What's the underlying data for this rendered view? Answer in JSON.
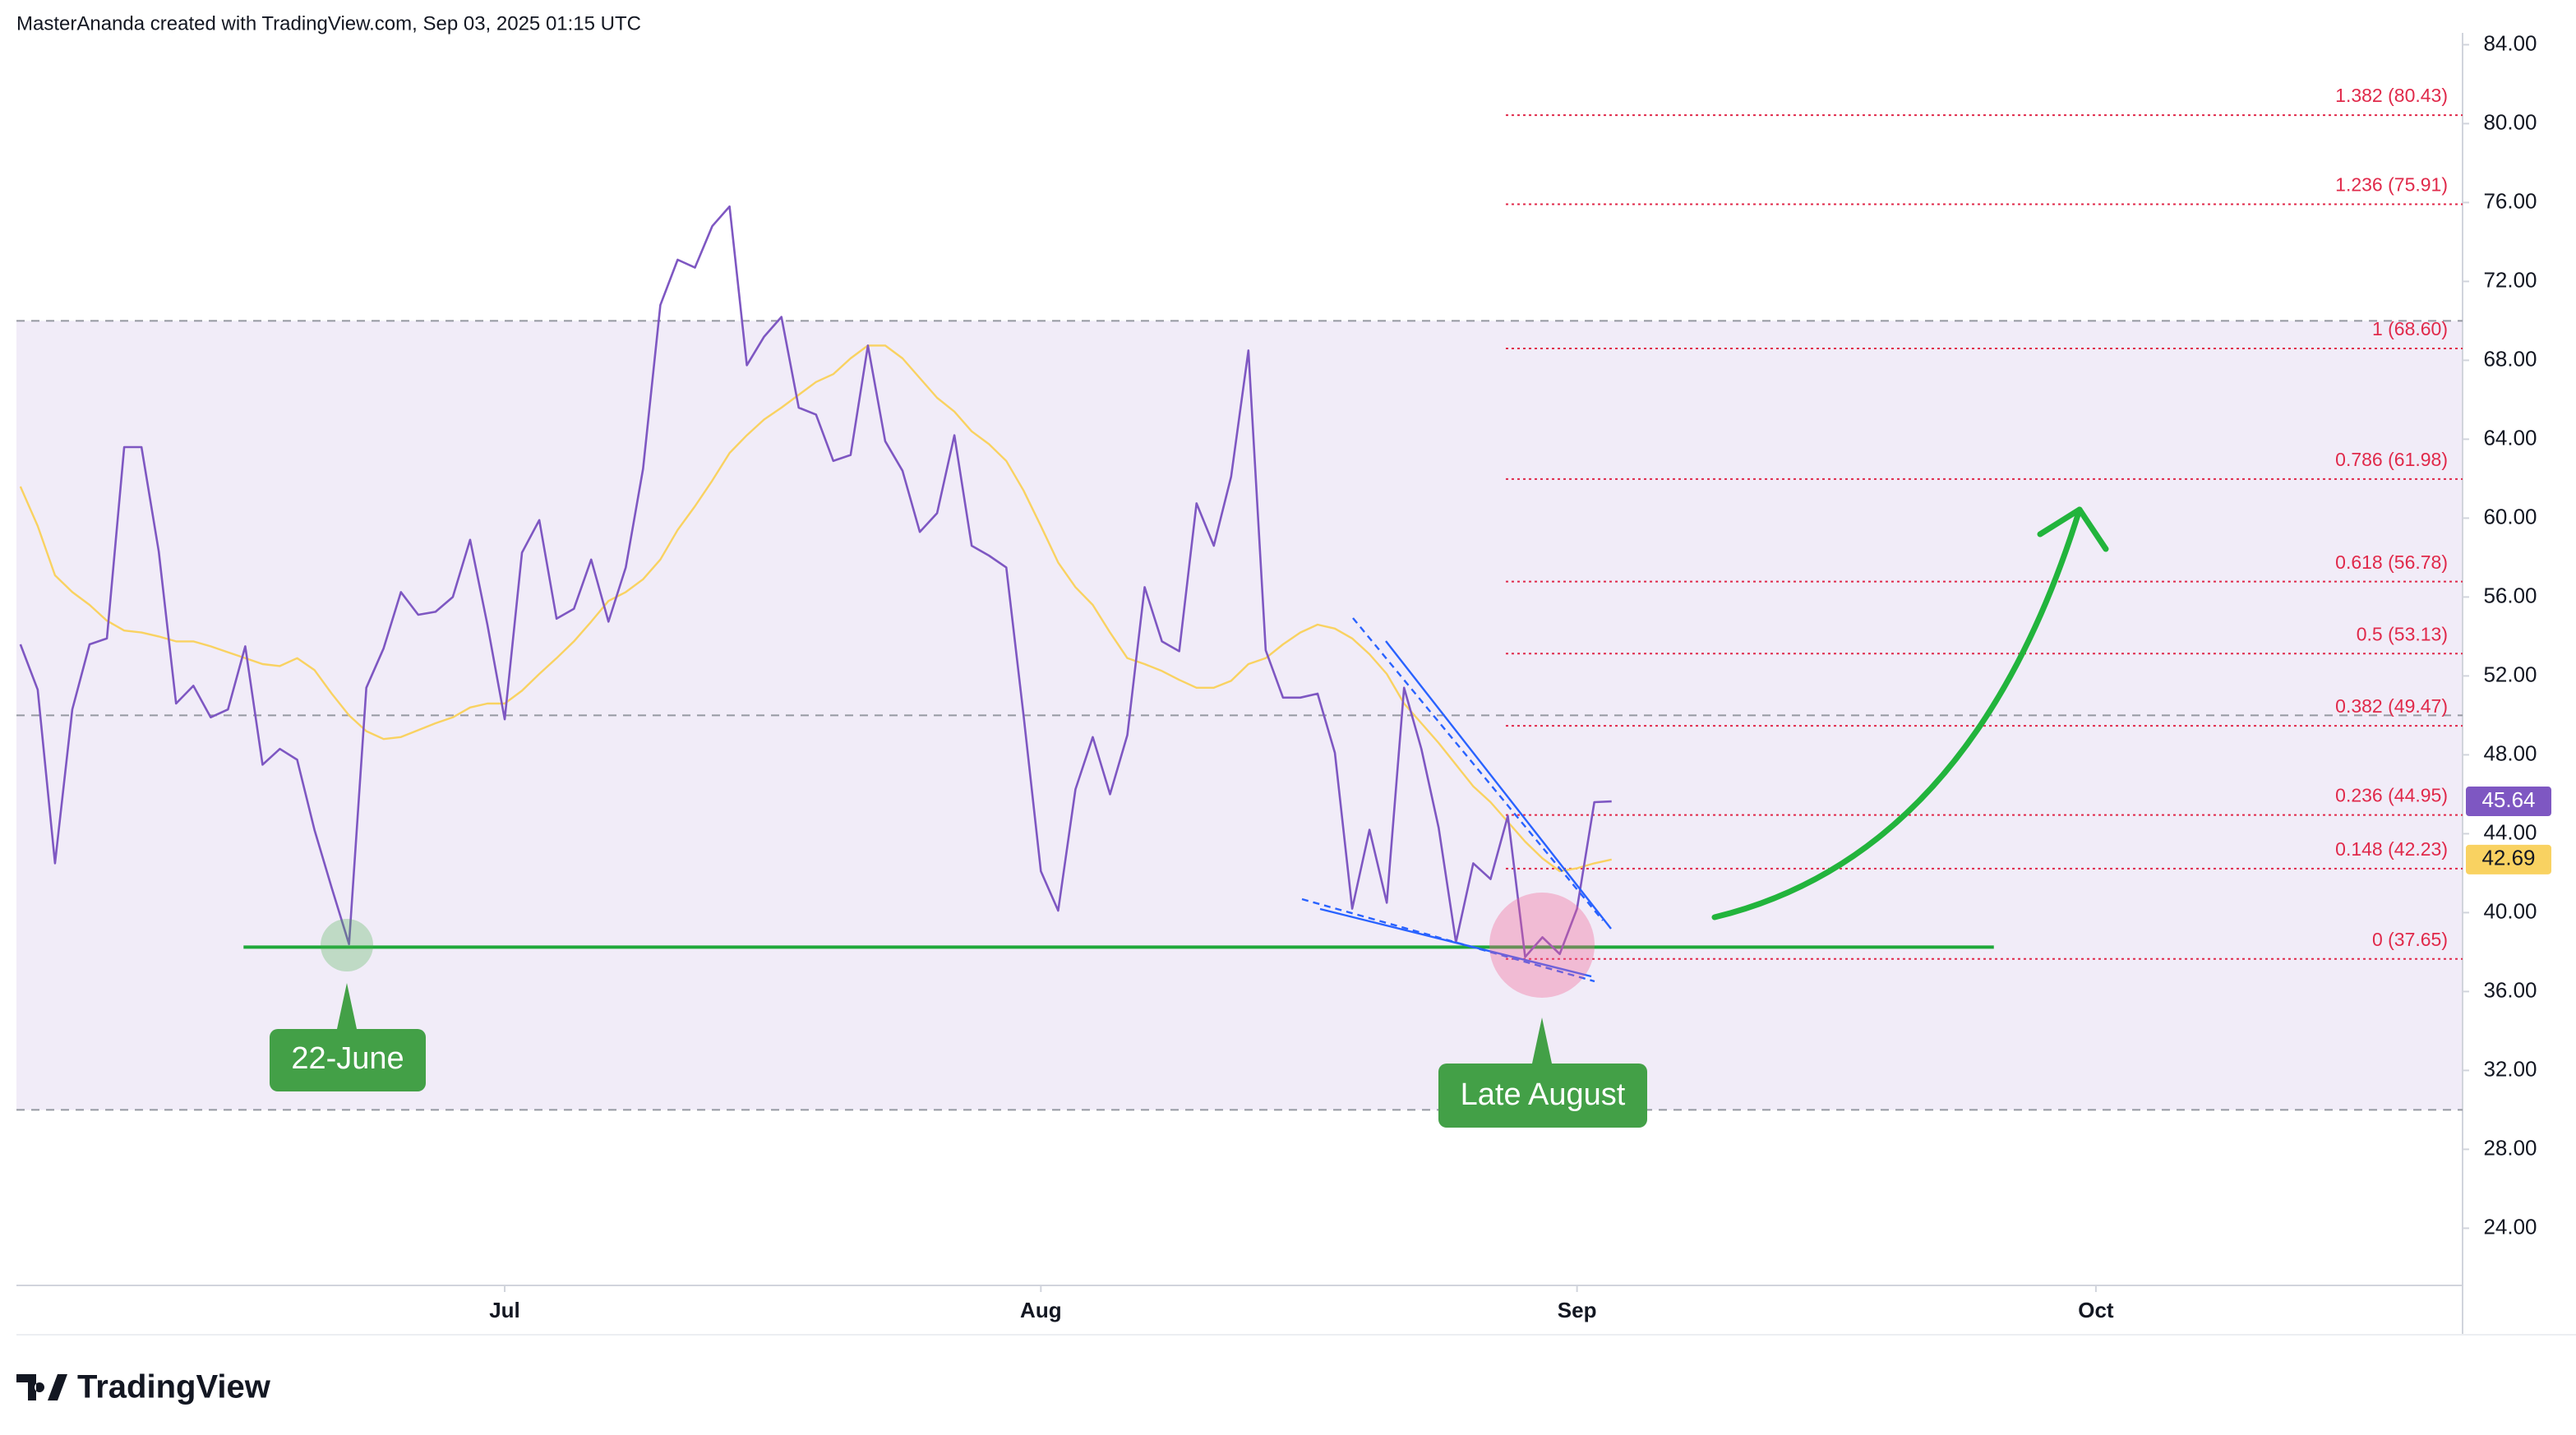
{
  "header": {
    "attribution": "MasterAnanda created with TradingView.com, Sep 03, 2025 01:15 UTC"
  },
  "footer": {
    "brand": "TradingView"
  },
  "chart_data": {
    "type": "line",
    "series": [
      {
        "name": "RSI",
        "color": "#7e57c2",
        "values": [
          53.6,
          51.3,
          42.5,
          50.3,
          53.6,
          53.9,
          63.6,
          63.6,
          58.3,
          50.6,
          51.5,
          49.9,
          50.3,
          53.5,
          47.5,
          48.3,
          47.75,
          44.2,
          41.25,
          38.4,
          51.4,
          53.4,
          56.25,
          55.1,
          55.25,
          56,
          58.9,
          54.6,
          49.8,
          58.25,
          59.9,
          54.9,
          55.4,
          57.9,
          54.75,
          57.5,
          62.5,
          70.8,
          73.1,
          72.7,
          74.8,
          75.8,
          67.75,
          69.2,
          70.2,
          65.6,
          65.25,
          62.9,
          63.2,
          68.75,
          63.9,
          62.4,
          59.3,
          60.25,
          64.2,
          58.6,
          58.1,
          57.5,
          50,
          42.1,
          40.1,
          46.25,
          48.9,
          46,
          49,
          56.5,
          53.75,
          53.25,
          60.75,
          58.6,
          62.1,
          68.5,
          53.3,
          50.9,
          50.9,
          51.1,
          48.1,
          40.2,
          44.2,
          40.5,
          51.4,
          48.3,
          44.3,
          38.5,
          42.5,
          41.7,
          44.9,
          37.75,
          38.75,
          37.9,
          40.2,
          45.6,
          45.64
        ]
      },
      {
        "name": "RSI-based MA",
        "color": "#f9d261",
        "values": [
          61.6,
          59.6,
          57.1,
          56.25,
          55.6,
          54.8,
          54.3,
          54.2,
          54,
          53.75,
          53.75,
          53.5,
          53.2,
          52.9,
          52.6,
          52.5,
          52.9,
          52.3,
          51.1,
          50,
          49.2,
          48.8,
          48.9,
          49.25,
          49.6,
          49.9,
          50.4,
          50.6,
          50.6,
          51.25,
          52.1,
          52.9,
          53.75,
          54.75,
          55.8,
          56.25,
          56.9,
          57.9,
          59.4,
          60.6,
          61.9,
          63.3,
          64.2,
          65,
          65.6,
          66.25,
          66.9,
          67.3,
          68.1,
          68.75,
          68.75,
          68.1,
          67.1,
          66.1,
          65.4,
          64.4,
          63.75,
          62.9,
          61.4,
          59.6,
          57.75,
          56.5,
          55.6,
          54.2,
          52.9,
          52.6,
          52.25,
          51.8,
          51.4,
          51.4,
          51.75,
          52.6,
          52.9,
          53.6,
          54.2,
          54.6,
          54.4,
          53.9,
          53.1,
          52.1,
          50.6,
          49.6,
          48.6,
          47.5,
          46.4,
          45.6,
          44.6,
          43.6,
          42.75,
          42.1,
          42.25,
          42.5,
          42.69
        ]
      }
    ],
    "xlim": [
      -0.23,
      141.2
    ],
    "xticks": [
      {
        "value": 28,
        "label": "Jul"
      },
      {
        "value": 59,
        "label": "Aug"
      },
      {
        "value": 90,
        "label": "Sep"
      },
      {
        "value": 120,
        "label": "Oct"
      }
    ],
    "ylim": [
      21.1,
      84.6
    ],
    "yticks": [
      {
        "value": 24,
        "label": "24.00"
      },
      {
        "value": 28,
        "label": "28.00"
      },
      {
        "value": 32,
        "label": "32.00"
      },
      {
        "value": 36,
        "label": "36.00"
      },
      {
        "value": 40,
        "label": "40.00"
      },
      {
        "value": 44,
        "label": "44.00"
      },
      {
        "value": 48,
        "label": "48.00"
      },
      {
        "value": 52,
        "label": "52.00"
      },
      {
        "value": 56,
        "label": "56.00"
      },
      {
        "value": 60,
        "label": "60.00"
      },
      {
        "value": 64,
        "label": "64.00"
      },
      {
        "value": 68,
        "label": "68.00"
      },
      {
        "value": 72,
        "label": "72.00"
      },
      {
        "value": 76,
        "label": "76.00"
      },
      {
        "value": 80,
        "label": "80.00"
      },
      {
        "value": 84,
        "label": "84.00"
      }
    ],
    "bands": [
      70,
      50,
      30
    ],
    "band_color": "#ede7f6",
    "fib_color": "#e0294a",
    "fib_levels": [
      {
        "label": "1.382 (80.43)",
        "value": 80.43
      },
      {
        "label": "1.236 (75.91)",
        "value": 75.91
      },
      {
        "label": "1 (68.60)",
        "value": 68.6
      },
      {
        "label": "0.786 (61.98)",
        "value": 61.98
      },
      {
        "label": "0.618 (56.78)",
        "value": 56.78
      },
      {
        "label": "0.5 (53.13)",
        "value": 53.13
      },
      {
        "label": "0.382 (49.47)",
        "value": 49.47
      },
      {
        "label": "0.236 (44.95)",
        "value": 44.95
      },
      {
        "label": "0.148 (42.23)",
        "value": 42.23
      },
      {
        "label": "0 (37.65)",
        "value": 37.65
      }
    ],
    "support_line": {
      "value": 38.25,
      "x": [
        12.9,
        114.1
      ],
      "color": "#1fa83a"
    },
    "annotations": [
      "22-June",
      "Late August"
    ]
  }
}
